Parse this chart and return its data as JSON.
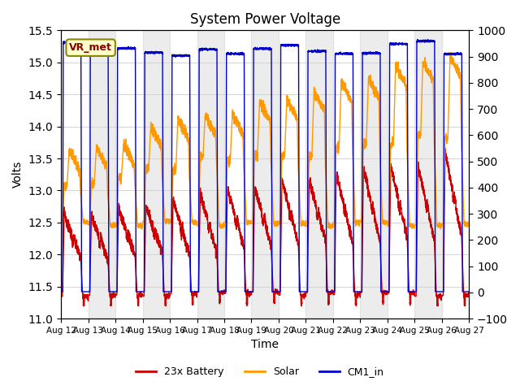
{
  "title": "System Power Voltage",
  "xlabel": "Time",
  "ylabel_left": "Volts",
  "ylim_left": [
    11.0,
    15.5
  ],
  "ylim_right": [
    -100,
    1000
  ],
  "yticks_left": [
    11.0,
    11.5,
    12.0,
    12.5,
    13.0,
    13.5,
    14.0,
    14.5,
    15.0,
    15.5
  ],
  "yticks_right": [
    -100,
    0,
    100,
    200,
    300,
    400,
    500,
    600,
    700,
    800,
    900,
    1000
  ],
  "xtick_labels": [
    "Aug 12",
    "Aug 13",
    "Aug 14",
    "Aug 15",
    "Aug 16",
    "Aug 17",
    "Aug 18",
    "Aug 19",
    "Aug 20",
    "Aug 21",
    "Aug 22",
    "Aug 23",
    "Aug 24",
    "Aug 25",
    "Aug 26",
    "Aug 27"
  ],
  "annotation_label": "VR_met",
  "colors": {
    "battery": "#cc0000",
    "solar": "#ff9900",
    "cm1": "#0000cc"
  },
  "legend_labels": [
    "23x Battery",
    "Solar",
    "CM1_in"
  ],
  "n_days": 15,
  "bg_stripe_alpha": 0.15,
  "linewidth": 1.0
}
